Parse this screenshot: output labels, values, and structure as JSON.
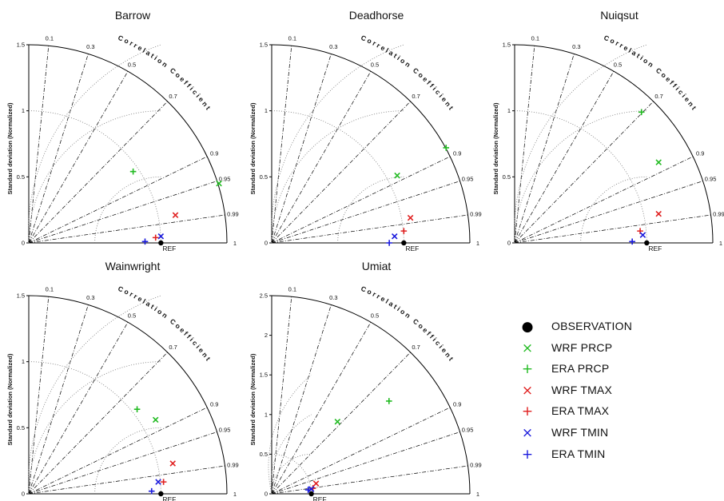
{
  "colors": {
    "OBSERVATION": "#000000",
    "PRCP": "#22bb22",
    "TMAX": "#e02020",
    "TMIN": "#1a1add"
  },
  "axis_texts": {
    "ylabel": "Standard deviation (Normalized)",
    "arc_label": "Correlation Coefficient",
    "ref_label": "REF",
    "corr_ticks": [
      "0.1",
      "0.3",
      "0.5",
      "0.7",
      "0.9",
      "0.95",
      "0.99",
      "1"
    ]
  },
  "legend": [
    {
      "label": "OBSERVATION",
      "marker": "dot",
      "color": "#000000"
    },
    {
      "label": "WRF PRCP",
      "marker": "x",
      "color": "#22bb22"
    },
    {
      "label": "ERA PRCP",
      "marker": "plus",
      "color": "#22bb22"
    },
    {
      "label": "WRF TMAX",
      "marker": "x",
      "color": "#e02020"
    },
    {
      "label": "ERA TMAX",
      "marker": "plus",
      "color": "#e02020"
    },
    {
      "label": "WRF TMIN",
      "marker": "x",
      "color": "#1a1add"
    },
    {
      "label": "ERA TMIN",
      "marker": "plus",
      "color": "#1a1add"
    }
  ],
  "chart_data": [
    {
      "type": "scatter",
      "subtype": "taylor-diagram",
      "title": "Barrow",
      "ylim": [
        0,
        1.5
      ],
      "yticks": [
        "0",
        "0.5",
        "1",
        "1.5"
      ],
      "points": [
        {
          "series": "WRF PRCP",
          "x": 1.44,
          "y": 0.45
        },
        {
          "series": "ERA PRCP",
          "x": 0.79,
          "y": 0.54
        },
        {
          "series": "WRF TMAX",
          "x": 1.11,
          "y": 0.21
        },
        {
          "series": "ERA TMAX",
          "x": 0.96,
          "y": 0.04
        },
        {
          "series": "WRF TMIN",
          "x": 1.0,
          "y": 0.05
        },
        {
          "series": "ERA TMIN",
          "x": 0.88,
          "y": 0.01
        }
      ],
      "reference": {
        "series": "OBSERVATION",
        "x": 1.0,
        "y": 0
      }
    },
    {
      "type": "scatter",
      "subtype": "taylor-diagram",
      "title": "Deadhorse",
      "ylim": [
        0,
        1.5
      ],
      "yticks": [
        "0",
        "0.5",
        "1",
        "1.5"
      ],
      "points": [
        {
          "series": "WRF PRCP",
          "x": 0.95,
          "y": 0.51
        },
        {
          "series": "ERA PRCP",
          "x": 1.32,
          "y": 0.72
        },
        {
          "series": "WRF TMAX",
          "x": 1.05,
          "y": 0.19
        },
        {
          "series": "ERA TMAX",
          "x": 1.0,
          "y": 0.09
        },
        {
          "series": "WRF TMIN",
          "x": 0.93,
          "y": 0.05
        },
        {
          "series": "ERA TMIN",
          "x": 0.89,
          "y": 0.0
        }
      ],
      "reference": {
        "series": "OBSERVATION",
        "x": 1.0,
        "y": 0
      }
    },
    {
      "type": "scatter",
      "subtype": "taylor-diagram",
      "title": "Nuiqsut",
      "ylim": [
        0,
        1.5
      ],
      "yticks": [
        "0",
        "0.5",
        "1",
        "1.5"
      ],
      "points": [
        {
          "series": "WRF PRCP",
          "x": 1.09,
          "y": 0.61
        },
        {
          "series": "ERA PRCP",
          "x": 0.96,
          "y": 0.99
        },
        {
          "series": "WRF TMAX",
          "x": 1.09,
          "y": 0.22
        },
        {
          "series": "ERA TMAX",
          "x": 0.95,
          "y": 0.09
        },
        {
          "series": "WRF TMIN",
          "x": 0.97,
          "y": 0.06
        },
        {
          "series": "ERA TMIN",
          "x": 0.89,
          "y": 0.01
        }
      ],
      "reference": {
        "series": "OBSERVATION",
        "x": 1.0,
        "y": 0
      }
    },
    {
      "type": "scatter",
      "subtype": "taylor-diagram",
      "title": "Wainwright",
      "ylim": [
        0,
        1.5
      ],
      "yticks": [
        "0",
        "0.5",
        "1",
        "1.5"
      ],
      "points": [
        {
          "series": "WRF PRCP",
          "x": 0.96,
          "y": 0.56
        },
        {
          "series": "ERA PRCP",
          "x": 0.82,
          "y": 0.64
        },
        {
          "series": "WRF TMAX",
          "x": 1.09,
          "y": 0.23
        },
        {
          "series": "ERA TMAX",
          "x": 1.02,
          "y": 0.09
        },
        {
          "series": "WRF TMIN",
          "x": 0.98,
          "y": 0.09
        },
        {
          "series": "ERA TMIN",
          "x": 0.93,
          "y": 0.02
        }
      ],
      "reference": {
        "series": "OBSERVATION",
        "x": 1.0,
        "y": 0
      }
    },
    {
      "type": "scatter",
      "subtype": "taylor-diagram",
      "title": "Umiat",
      "ylim": [
        0,
        2.5
      ],
      "yticks": [
        "0",
        "0.5",
        "1",
        "1.5",
        "2",
        "2.5"
      ],
      "points": [
        {
          "series": "WRF PRCP",
          "x": 0.83,
          "y": 0.91
        },
        {
          "series": "ERA PRCP",
          "x": 1.48,
          "y": 1.17
        },
        {
          "series": "WRF TMAX",
          "x": 0.56,
          "y": 0.13
        },
        {
          "series": "ERA TMAX",
          "x": 0.52,
          "y": 0.07
        },
        {
          "series": "WRF TMIN",
          "x": 0.5,
          "y": 0.06
        },
        {
          "series": "ERA TMIN",
          "x": 0.46,
          "y": 0.05
        }
      ],
      "reference": {
        "series": "OBSERVATION",
        "x": 0.5,
        "y": 0
      }
    }
  ]
}
